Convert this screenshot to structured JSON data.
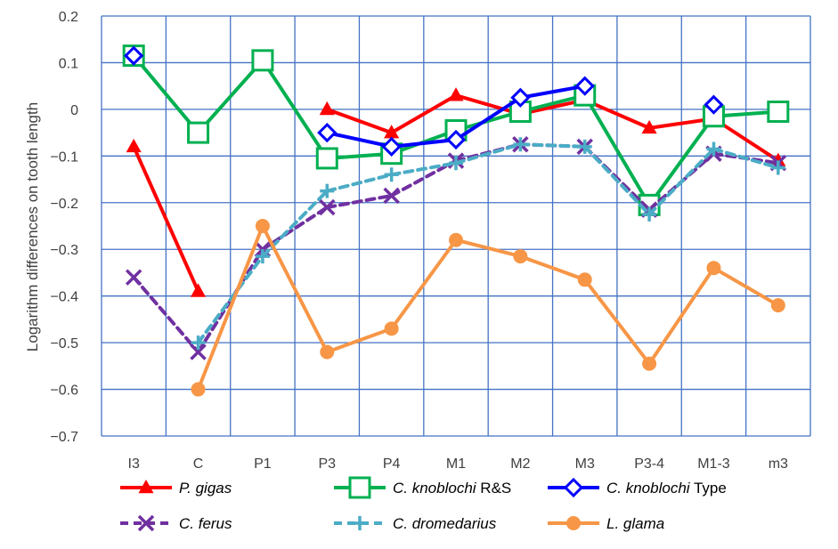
{
  "chart_data": {
    "type": "line",
    "ylabel": "Logarithm differences on tooth length",
    "ylim": [
      -0.7,
      0.2
    ],
    "yticks": [
      0.2,
      0.1,
      0,
      -0.1,
      -0.2,
      -0.3,
      -0.4,
      -0.5,
      -0.6,
      -0.7
    ],
    "ytick_labels": [
      "0.2",
      "0.1",
      "0",
      "−0.1",
      "−0.2",
      "−0.3",
      "−0.4",
      "−0.5",
      "−0.6",
      "−0.7"
    ],
    "grid": true,
    "legend_position": "bottom",
    "categories": [
      "I3",
      "C",
      "P1",
      "P3",
      "P4",
      "M1",
      "M2",
      "M3",
      "P3-4",
      "M1-3",
      "m3"
    ],
    "series": [
      {
        "name": "P. gigas",
        "name_parts": [
          {
            "text": "P. gigas",
            "italic": true
          }
        ],
        "color": "#ff0000",
        "marker": "triangle",
        "dash": false,
        "values": [
          -0.08,
          -0.39,
          null,
          0.0,
          -0.05,
          0.03,
          -0.01,
          0.02,
          -0.04,
          -0.02,
          -0.11
        ]
      },
      {
        "name": "C. knoblochi R&S",
        "name_parts": [
          {
            "text": "C. knoblochi",
            "italic": true
          },
          {
            "text": " R&S",
            "italic": false
          }
        ],
        "color": "#00b050",
        "marker": "square",
        "dash": false,
        "values": [
          0.115,
          -0.05,
          0.105,
          -0.105,
          -0.095,
          -0.045,
          -0.005,
          0.03,
          -0.205,
          -0.015,
          -0.005
        ]
      },
      {
        "name": "C. knoblochi Type",
        "name_parts": [
          {
            "text": "C. knoblochi",
            "italic": true
          },
          {
            "text": " Type",
            "italic": false
          }
        ],
        "color": "#0000ff",
        "marker": "diamond",
        "dash": false,
        "values": [
          0.115,
          null,
          null,
          -0.05,
          -0.08,
          -0.065,
          0.025,
          0.05,
          null,
          0.01,
          null
        ]
      },
      {
        "name": "C. ferus",
        "name_parts": [
          {
            "text": "C. ferus",
            "italic": true
          }
        ],
        "color": "#7030a0",
        "marker": "x",
        "dash": true,
        "values": [
          -0.36,
          -0.52,
          -0.3,
          -0.21,
          -0.185,
          -0.11,
          -0.075,
          -0.08,
          -0.215,
          -0.095,
          -0.115
        ]
      },
      {
        "name": "C. dromedarius",
        "name_parts": [
          {
            "text": "C. dromedarius",
            "italic": true
          }
        ],
        "color": "#4bacc6",
        "marker": "plus",
        "dash": true,
        "values": [
          null,
          -0.5,
          -0.315,
          -0.175,
          -0.14,
          -0.115,
          -0.075,
          -0.08,
          -0.225,
          -0.085,
          -0.125
        ]
      },
      {
        "name": "L. glama",
        "name_parts": [
          {
            "text": "L. glama",
            "italic": true
          }
        ],
        "color": "#f79646",
        "marker": "circle",
        "dash": false,
        "values": [
          null,
          -0.6,
          -0.25,
          -0.52,
          -0.47,
          -0.28,
          -0.315,
          -0.365,
          -0.545,
          -0.34,
          -0.42
        ]
      }
    ]
  }
}
